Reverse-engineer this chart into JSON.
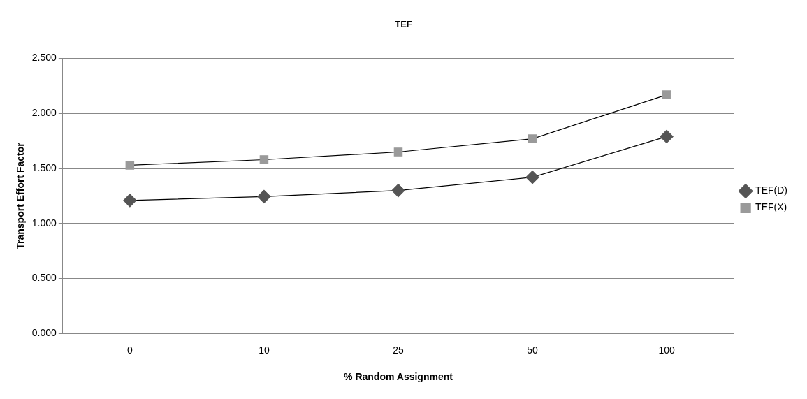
{
  "chart_data": {
    "type": "line",
    "title": "TEF",
    "xlabel": "% Random Assignment",
    "ylabel": "Transport Effort Factor",
    "categories": [
      "0",
      "10",
      "25",
      "50",
      "100"
    ],
    "series": [
      {
        "name": "TEF(D)",
        "color": "#555555",
        "marker": "diamond",
        "values": [
          1.21,
          1.245,
          1.3,
          1.42,
          1.79
        ]
      },
      {
        "name": "TEF(X)",
        "color": "#9a9a9a",
        "marker": "square",
        "values": [
          1.53,
          1.58,
          1.65,
          1.77,
          2.17
        ]
      }
    ],
    "ylim": [
      0,
      2.5
    ],
    "yticks": [
      {
        "value": 0,
        "label": "0.000"
      },
      {
        "value": 0.5,
        "label": "0.500"
      },
      {
        "value": 1,
        "label": "1.000"
      },
      {
        "value": 1.5,
        "label": "1.500"
      },
      {
        "value": 2,
        "label": "2.000"
      },
      {
        "value": 2.5,
        "label": "2.500"
      }
    ],
    "grid": "y",
    "legend": "right",
    "line_style": "solid"
  }
}
